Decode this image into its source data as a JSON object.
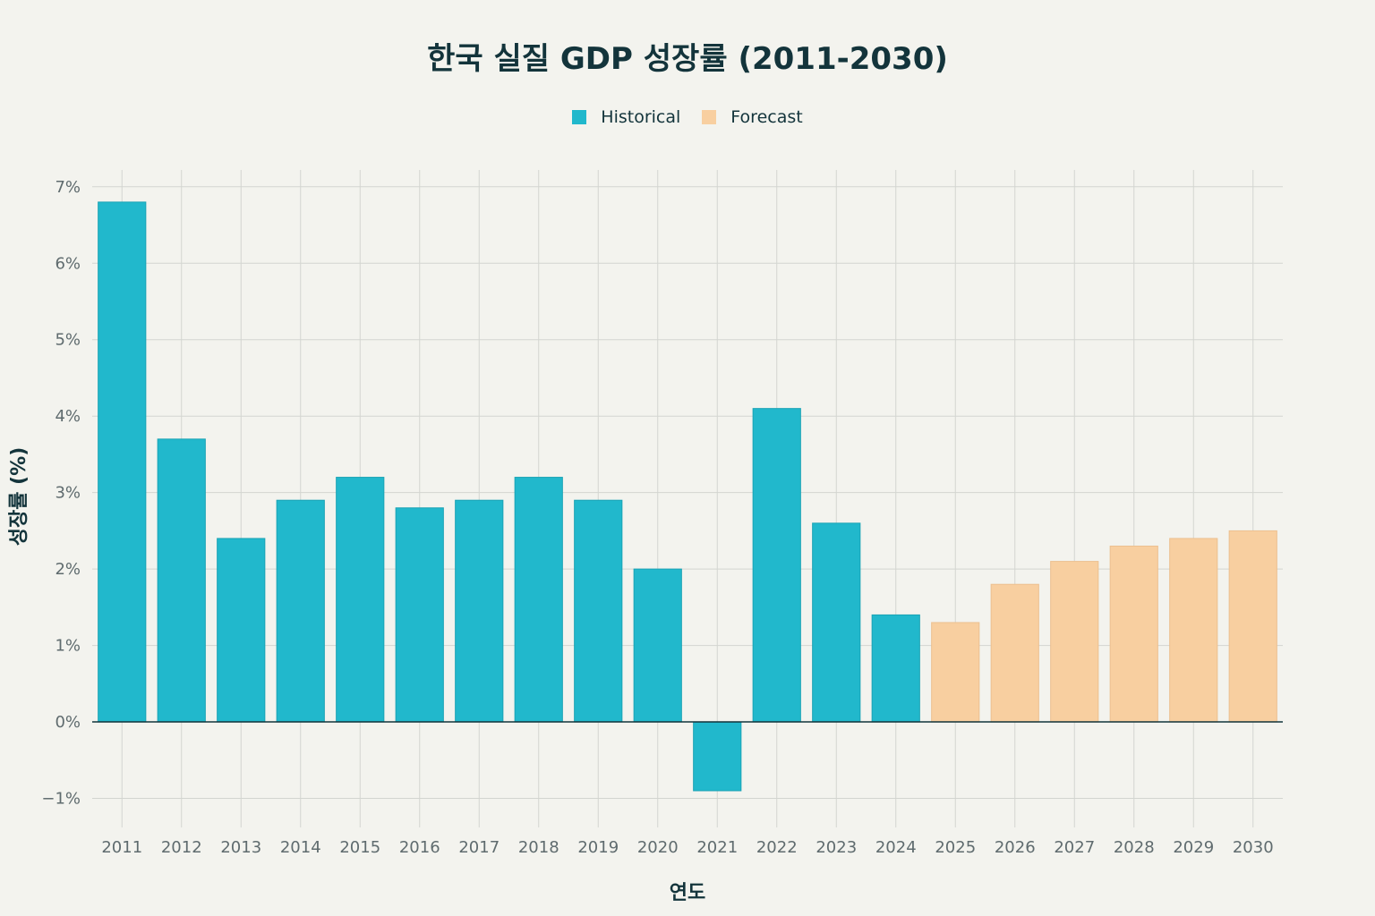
{
  "chart_data": {
    "type": "bar",
    "title": "한국 실질 GDP 성장률 (2011-2030)",
    "xlabel": "연도",
    "ylabel": "성장률 (%)",
    "categories": [
      "2011",
      "2012",
      "2013",
      "2014",
      "2015",
      "2016",
      "2017",
      "2018",
      "2019",
      "2020",
      "2021",
      "2022",
      "2023",
      "2024",
      "2025",
      "2026",
      "2027",
      "2028",
      "2029",
      "2030"
    ],
    "series": [
      {
        "name": "Historical",
        "color": "#21b8cc",
        "values": [
          6.8,
          3.7,
          2.4,
          2.9,
          3.2,
          2.8,
          2.9,
          3.2,
          2.9,
          2.0,
          -0.9,
          4.1,
          2.6,
          1.4,
          null,
          null,
          null,
          null,
          null,
          null
        ]
      },
      {
        "name": "Forecast",
        "color": "#f8cfa0",
        "values": [
          null,
          null,
          null,
          null,
          null,
          null,
          null,
          null,
          null,
          null,
          null,
          null,
          null,
          null,
          1.3,
          1.8,
          2.1,
          2.3,
          2.4,
          2.5
        ]
      }
    ],
    "yticks": [
      -1,
      0,
      1,
      2,
      3,
      4,
      5,
      6,
      7
    ],
    "ytick_labels": [
      "−1%",
      "0%",
      "1%",
      "2%",
      "3%",
      "4%",
      "5%",
      "6%",
      "7%"
    ],
    "ylim": [
      -1.38,
      7.22
    ],
    "grid": true,
    "legend_position": "top-center",
    "background": "#f3f3ee"
  }
}
